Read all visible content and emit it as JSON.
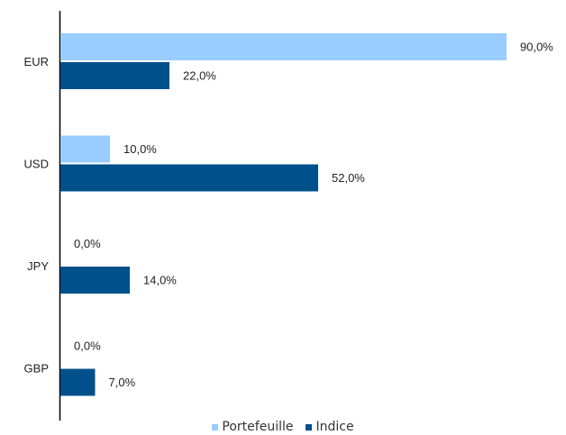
{
  "chart_data": {
    "type": "bar",
    "orientation": "horizontal",
    "categories": [
      "EUR",
      "USD",
      "JPY",
      "GBP"
    ],
    "series": [
      {
        "name": "Portefeuille",
        "color": "#99ccff",
        "values": [
          90.0,
          10.0,
          0.0,
          0.0
        ],
        "labels": [
          "90,0%",
          "10,0%",
          "0,0%",
          "0,0%"
        ]
      },
      {
        "name": "Indice",
        "color": "#00508c",
        "values": [
          22.0,
          52.0,
          14.0,
          7.0
        ],
        "labels": [
          "22,0%",
          "52,0%",
          "14,0%",
          "7,0%"
        ]
      }
    ],
    "xlim": [
      0,
      100
    ],
    "grid": false,
    "legend_position": "bottom-center"
  }
}
